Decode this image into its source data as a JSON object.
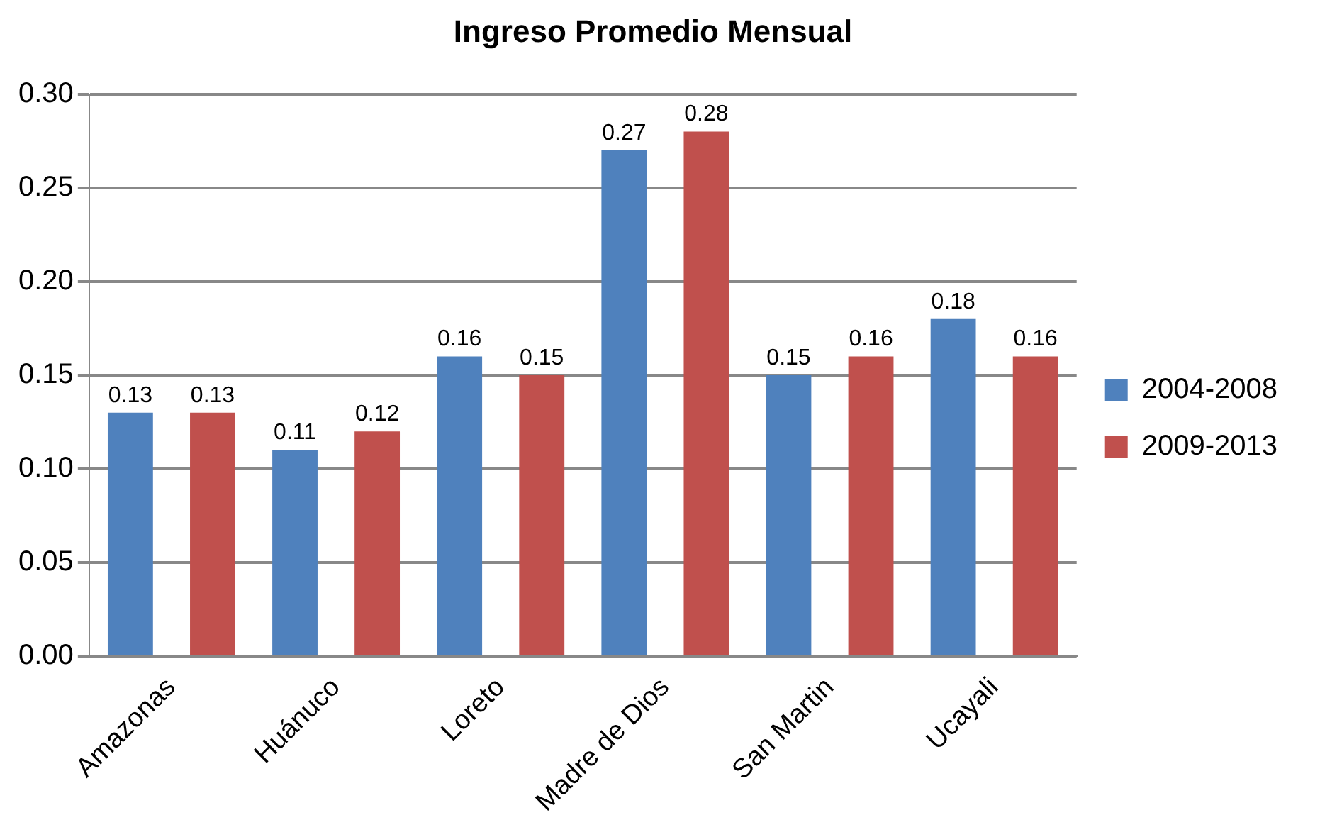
{
  "chart_data": {
    "type": "bar",
    "title": "Ingreso Promedio Mensual",
    "categories": [
      "Amazonas",
      "Huánuco",
      "Loreto",
      "Madre de Dios",
      "San Martin",
      "Ucayali"
    ],
    "series": [
      {
        "name": "2004-2008",
        "color": "#4f81bd",
        "values": [
          0.13,
          0.11,
          0.16,
          0.27,
          0.15,
          0.18
        ]
      },
      {
        "name": "2009-2013",
        "color": "#c0504d",
        "values": [
          0.13,
          0.12,
          0.15,
          0.28,
          0.16,
          0.16
        ]
      }
    ],
    "ylim": [
      0,
      0.3
    ],
    "yticks": [
      {
        "value": 0,
        "label": "0.00"
      },
      {
        "value": 0.05,
        "label": "0.05"
      },
      {
        "value": 0.1,
        "label": "0.10"
      },
      {
        "value": 0.15,
        "label": "0.15"
      },
      {
        "value": 0.2,
        "label": "0.20"
      },
      {
        "value": 0.25,
        "label": "0.25"
      },
      {
        "value": 0.3,
        "label": "0.30"
      }
    ],
    "grid": "y",
    "legend": "right",
    "data_labels": true
  }
}
